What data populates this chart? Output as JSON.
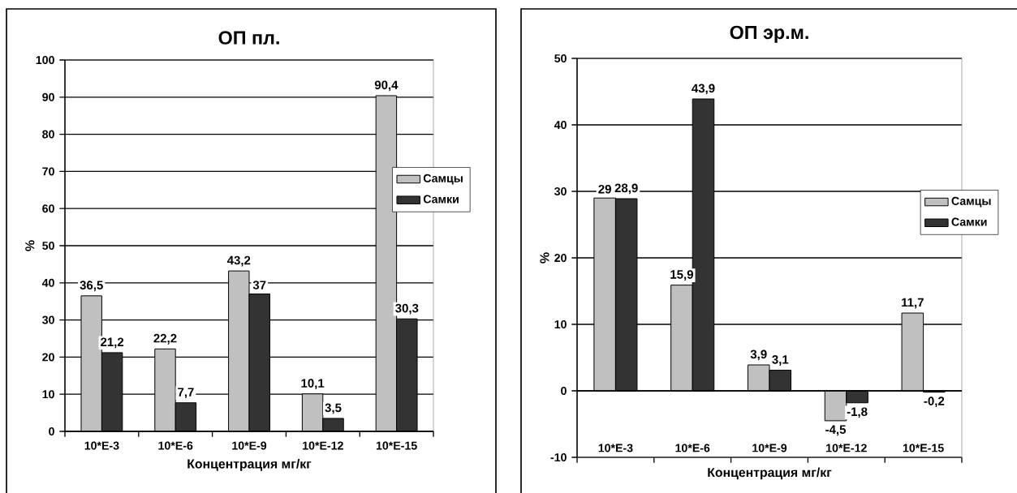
{
  "chart_data": [
    {
      "type": "bar",
      "title": "ОП пл.",
      "xlabel": "Концентрация мг/кг",
      "ylabel": "%",
      "categories": [
        "10*E-3",
        "10*E-6",
        "10*E-9",
        "10*E-12",
        "10*E-15"
      ],
      "series": [
        {
          "name": "Самцы",
          "color": "#c0c0c0",
          "values": [
            36.5,
            22.2,
            43.2,
            10.1,
            90.4
          ],
          "value_labels": [
            "36,5",
            "22,2",
            "43,2",
            "10,1",
            "90,4"
          ]
        },
        {
          "name": "Самки",
          "color": "#333333",
          "values": [
            21.2,
            7.7,
            37,
            3.5,
            30.3
          ],
          "value_labels": [
            "21,2",
            "7,7",
            "37",
            "3,5",
            "30,3"
          ]
        }
      ],
      "ylim": [
        0,
        100
      ],
      "yticks": [
        0,
        10,
        20,
        30,
        40,
        50,
        60,
        70,
        80,
        90,
        100
      ],
      "grid": "y",
      "legend": "right"
    },
    {
      "type": "bar",
      "title": "ОП эр.м.",
      "xlabel": "Концентрация мг/кг",
      "ylabel": "%",
      "categories": [
        "10*E-3",
        "10*E-6",
        "10*E-9",
        "10*E-12",
        "10*E-15"
      ],
      "series": [
        {
          "name": "Самцы",
          "color": "#c0c0c0",
          "values": [
            29,
            15.9,
            3.9,
            -4.5,
            11.7
          ],
          "value_labels": [
            "29",
            "15,9",
            "3,9",
            "-4,5",
            "11,7"
          ]
        },
        {
          "name": "Самки",
          "color": "#333333",
          "values": [
            28.9,
            43.9,
            3.1,
            -1.8,
            -0.2
          ],
          "value_labels": [
            "28,9",
            "43,9",
            "3,1",
            "-1,8",
            "-0,2"
          ]
        }
      ],
      "ylim": [
        -10,
        50
      ],
      "yticks": [
        -10,
        0,
        10,
        20,
        30,
        40,
        50
      ],
      "grid": "y",
      "legend": "right"
    }
  ]
}
